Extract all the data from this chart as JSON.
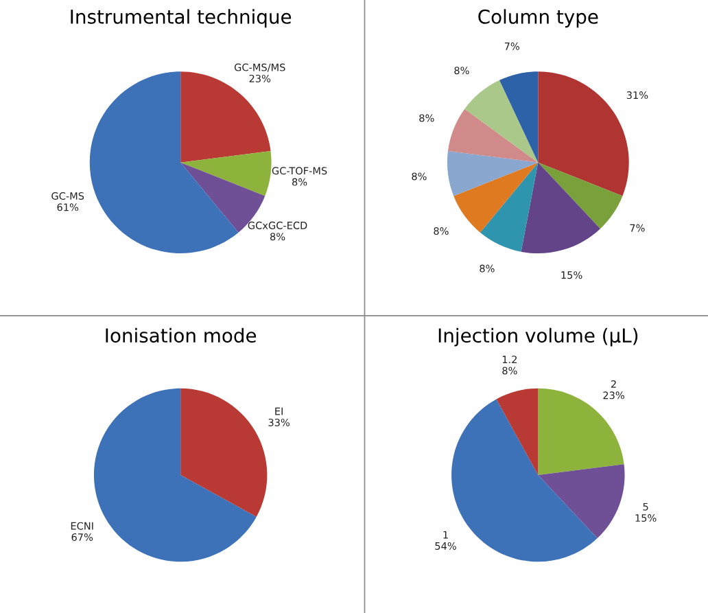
{
  "chart_data": [
    {
      "type": "pie",
      "title": "Instrumental technique",
      "categories": [
        "GC-MS/MS",
        "GC-TOF-MS",
        "GCxGC-ECD",
        "GC-MS"
      ],
      "values": [
        23,
        8,
        8,
        61
      ],
      "value_labels": [
        "23%",
        "8%",
        "8%",
        "61%"
      ],
      "colors": [
        "#b93a35",
        "#8db33c",
        "#6f4f96",
        "#3d72b9"
      ]
    },
    {
      "type": "pie",
      "title": "Column type",
      "categories": [
        null,
        null,
        null,
        null,
        null,
        null,
        null,
        null,
        null
      ],
      "values": [
        31,
        7,
        15,
        8,
        8,
        8,
        8,
        8,
        7
      ],
      "value_labels": [
        "31%",
        "7%",
        "15%",
        "8%",
        "8%",
        "8%",
        "8%",
        "8%",
        "7%"
      ],
      "colors": [
        "#b03431",
        "#79a03a",
        "#644488",
        "#2f94ad",
        "#e07a20",
        "#8aa7d0",
        "#d08a8a",
        "#a9c88a",
        "#2e62a8"
      ]
    },
    {
      "type": "pie",
      "title": "Ionisation mode",
      "categories": [
        "EI",
        "ECNI"
      ],
      "values": [
        33,
        67
      ],
      "value_labels": [
        "33%",
        "67%"
      ],
      "colors": [
        "#b93a35",
        "#3d72b9"
      ]
    },
    {
      "type": "pie",
      "title": "Injection volume (µL)",
      "categories": [
        "2",
        "5",
        "1",
        "1.2"
      ],
      "values": [
        23,
        15,
        54,
        8
      ],
      "value_labels": [
        "23%",
        "15%",
        "54%",
        "8%"
      ],
      "colors": [
        "#8db33c",
        "#6f4f96",
        "#3d72b9",
        "#b93a35"
      ]
    }
  ]
}
